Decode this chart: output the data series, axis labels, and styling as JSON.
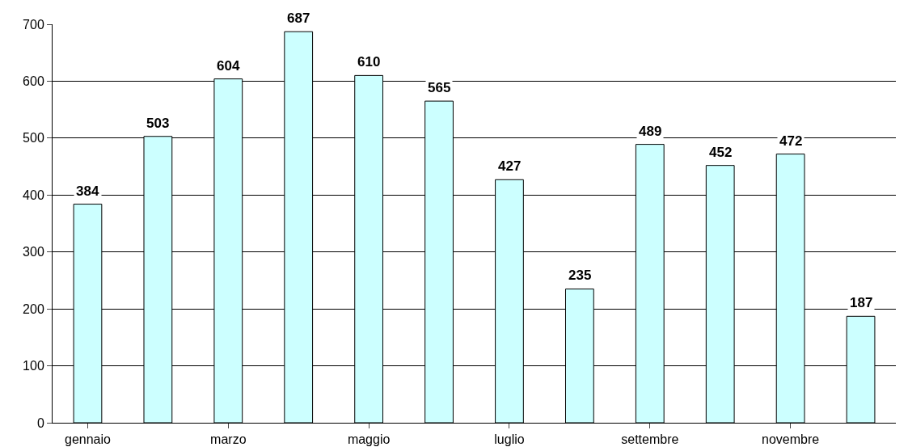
{
  "chart_data": {
    "type": "bar",
    "categories": [
      "gennaio",
      null,
      "marzo",
      null,
      "maggio",
      null,
      "luglio",
      null,
      "settembre",
      null,
      "novembre",
      null
    ],
    "values": [
      384,
      503,
      604,
      687,
      610,
      565,
      427,
      235,
      489,
      452,
      472,
      187
    ],
    "color": "#ccffff",
    "ylim": [
      0,
      700
    ],
    "yticks": [
      0,
      100,
      200,
      300,
      400,
      500,
      600,
      700
    ],
    "grid": "y",
    "data_labels": true
  }
}
